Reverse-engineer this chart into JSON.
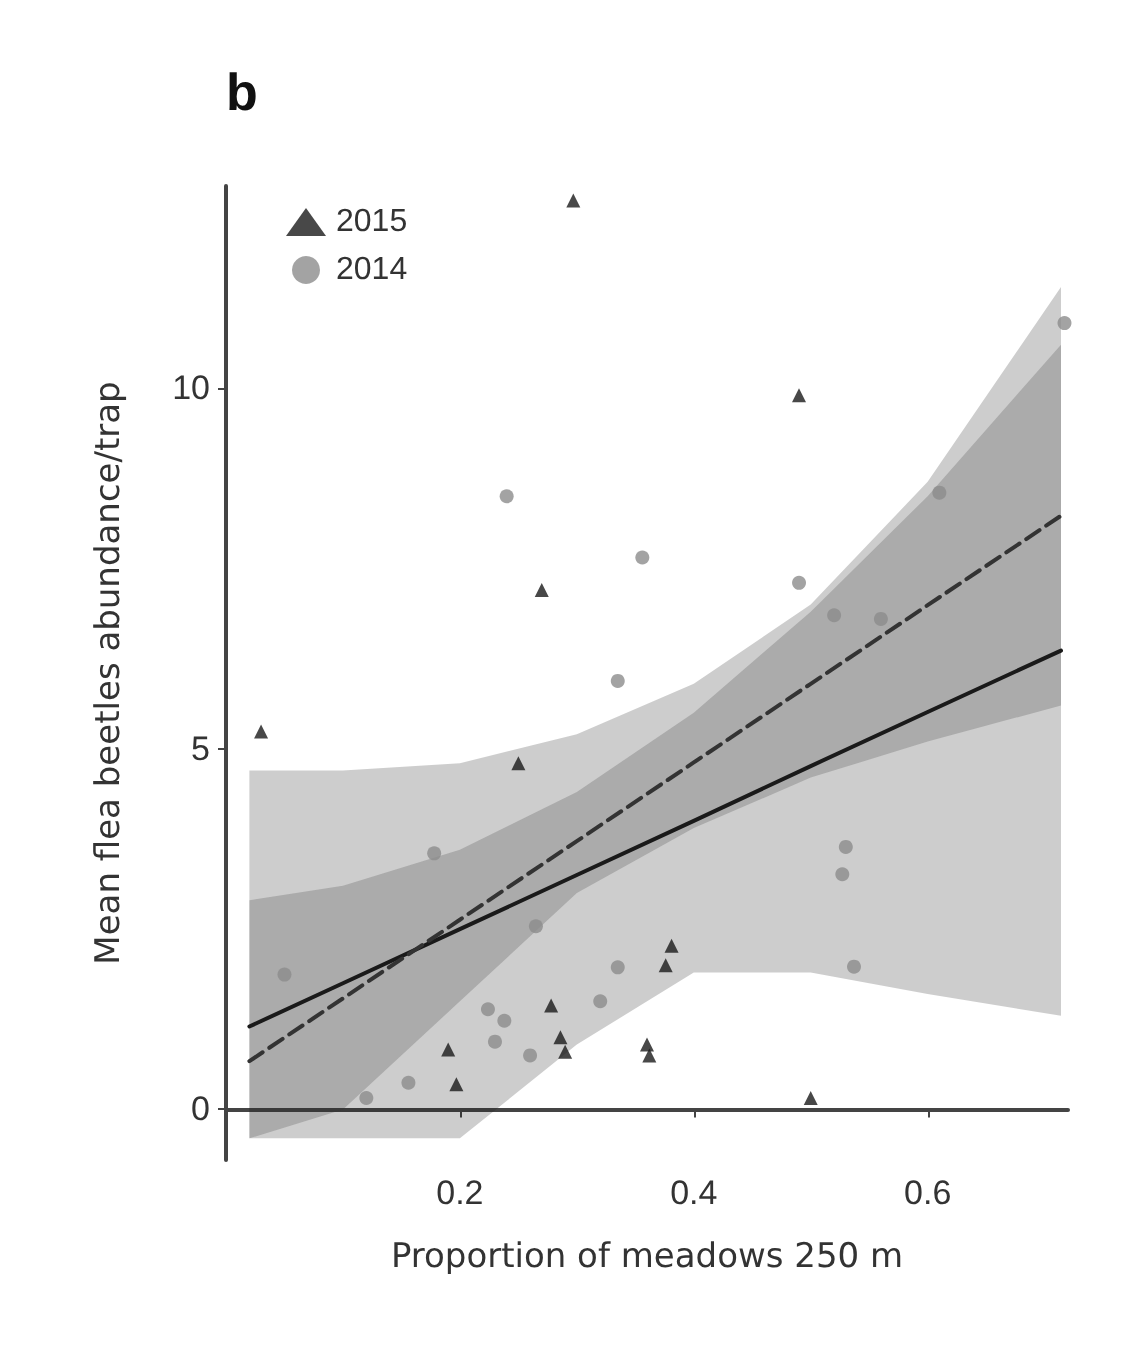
{
  "chart_data": {
    "type": "scatter",
    "title": "b",
    "xlabel": "Proportion of meadows 250 m",
    "ylabel": "Mean flea beetles abundance/trap",
    "xlim": [
      0,
      0.72
    ],
    "ylim": [
      -0.7,
      12.8
    ],
    "xticks": [
      0.2,
      0.4,
      0.6
    ],
    "yticks": [
      0,
      5,
      10
    ],
    "grid": false,
    "legend": "top left",
    "series": [
      {
        "name": "2015",
        "marker": "triangle",
        "color": "#1a1a1a",
        "x": [
          0.03,
          0.297,
          0.27,
          0.25,
          0.49,
          0.5,
          0.381,
          0.376,
          0.36,
          0.362,
          0.286,
          0.29,
          0.278,
          0.19,
          0.197
        ],
        "values": [
          5.24,
          12.6,
          7.2,
          4.8,
          9.9,
          0.16,
          2.27,
          2.0,
          0.9,
          0.75,
          1.0,
          0.8,
          1.44,
          0.83,
          0.35
        ]
      },
      {
        "name": "2014",
        "marker": "circle",
        "color": "#8c8c8c",
        "x": [
          0.24,
          0.356,
          0.49,
          0.61,
          0.52,
          0.56,
          0.335,
          0.178,
          0.05,
          0.265,
          0.335,
          0.32,
          0.224,
          0.238,
          0.23,
          0.26,
          0.156,
          0.12,
          0.53,
          0.527,
          0.537,
          0.717
        ],
        "values": [
          8.5,
          7.65,
          7.3,
          8.55,
          6.85,
          6.8,
          5.94,
          3.55,
          1.87,
          2.54,
          1.97,
          1.5,
          1.39,
          1.23,
          0.94,
          0.75,
          0.37,
          0.16,
          3.64,
          3.26,
          1.98,
          10.9
        ]
      },
      {
        "type": "line",
        "line_style": "solid",
        "color": "#1a1a1a",
        "x": [
          0.02,
          0.1,
          0.2,
          0.3,
          0.4,
          0.5,
          0.6,
          0.714
        ],
        "values": [
          1.15,
          1.75,
          2.5,
          3.25,
          4.0,
          4.76,
          5.51,
          6.36
        ],
        "lower": [
          -0.4,
          -0.4,
          -0.4,
          0.9,
          1.9,
          1.9,
          1.6,
          1.3
        ],
        "upper": [
          4.7,
          4.7,
          4.8,
          5.2,
          5.9,
          7.0,
          8.7,
          11.4
        ]
      },
      {
        "type": "line",
        "line_style": "dashed",
        "color": "#333333",
        "x": [
          0.02,
          0.1,
          0.2,
          0.3,
          0.4,
          0.5,
          0.6,
          0.714
        ],
        "values": [
          0.67,
          1.54,
          2.63,
          3.72,
          4.81,
          5.9,
          6.99,
          8.23
        ],
        "lower": [
          -0.4,
          0.0,
          1.5,
          3.0,
          3.9,
          4.6,
          5.1,
          5.6
        ],
        "upper": [
          2.9,
          3.1,
          3.6,
          4.4,
          5.5,
          6.9,
          8.5,
          10.6
        ]
      }
    ]
  }
}
